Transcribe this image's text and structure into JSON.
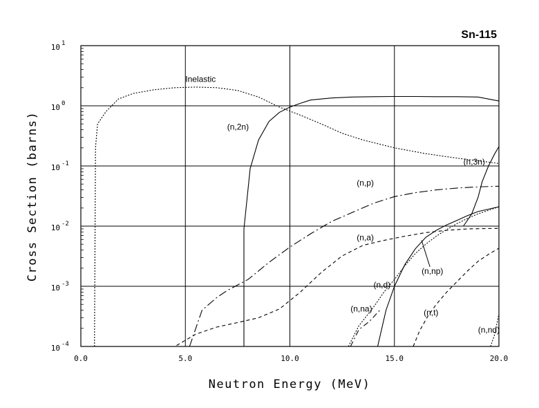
{
  "chart_data": {
    "type": "line",
    "title": "Sn-115",
    "xlabel": "Neutron Energy (MeV)",
    "ylabel": "Cross Section (barns)",
    "xlim": [
      0,
      20
    ],
    "ylim": [
      0.0001,
      10
    ],
    "yscale": "log",
    "grid": true,
    "x_ticks": [
      "0.0",
      "5.0",
      "10.0",
      "15.0",
      "20.0"
    ],
    "x_tick_values": [
      0,
      5,
      10,
      15,
      20
    ],
    "y_ticks": [
      {
        "base": "10",
        "exp": "-4",
        "value": 0.0001
      },
      {
        "base": "10",
        "exp": "-3",
        "value": 0.001
      },
      {
        "base": "10",
        "exp": "-2",
        "value": 0.01
      },
      {
        "base": "10",
        "exp": "-1",
        "value": 0.1
      },
      {
        "base": "10",
        "exp": "0",
        "value": 1
      },
      {
        "base": "10",
        "exp": "1",
        "value": 10
      }
    ],
    "series": [
      {
        "name": "Inelastic",
        "dash": "2,2",
        "label_at": [
          5.0,
          2.5
        ],
        "points": [
          [
            0.65,
            0.0001
          ],
          [
            0.7,
            0.2
          ],
          [
            0.8,
            0.5
          ],
          [
            1.2,
            0.8
          ],
          [
            1.8,
            1.3
          ],
          [
            2.5,
            1.6
          ],
          [
            3.5,
            1.85
          ],
          [
            4.5,
            2.0
          ],
          [
            5.5,
            2.05
          ],
          [
            6.5,
            2.0
          ],
          [
            7.5,
            1.8
          ],
          [
            8.5,
            1.4
          ],
          [
            9.5,
            0.95
          ],
          [
            10.5,
            0.7
          ],
          [
            11.5,
            0.5
          ],
          [
            12.5,
            0.35
          ],
          [
            13.5,
            0.27
          ],
          [
            15.0,
            0.2
          ],
          [
            16.5,
            0.16
          ],
          [
            18.0,
            0.135
          ],
          [
            20.0,
            0.11
          ]
        ]
      },
      {
        "name": "(n,2n)",
        "dash": "",
        "label_at": [
          7.0,
          0.4
        ],
        "points": [
          [
            7.8,
            0.0001
          ],
          [
            7.8,
            0.009
          ],
          [
            8.1,
            0.09
          ],
          [
            8.5,
            0.27
          ],
          [
            9.0,
            0.55
          ],
          [
            9.5,
            0.78
          ],
          [
            10.0,
            0.95
          ],
          [
            10.5,
            1.1
          ],
          [
            11.0,
            1.25
          ],
          [
            12.0,
            1.35
          ],
          [
            13.0,
            1.4
          ],
          [
            14.0,
            1.42
          ],
          [
            15.0,
            1.43
          ],
          [
            16.0,
            1.43
          ],
          [
            17.0,
            1.42
          ],
          [
            18.0,
            1.42
          ],
          [
            19.0,
            1.4
          ],
          [
            20.0,
            1.2
          ]
        ]
      },
      {
        "name": "(n,3n)",
        "dash": "",
        "label_at": [
          18.3,
          0.105
        ],
        "points": [
          [
            18.3,
            0.01
          ],
          [
            18.7,
            0.016
          ],
          [
            19.0,
            0.03
          ],
          [
            19.2,
            0.055
          ],
          [
            19.5,
            0.1
          ],
          [
            19.8,
            0.16
          ],
          [
            20.0,
            0.21
          ]
        ]
      },
      {
        "name": "(n,p)",
        "dash": "12,4,2,4",
        "label_at": [
          13.2,
          0.047
        ],
        "points": [
          [
            5.2,
            0.0001
          ],
          [
            5.8,
            0.0004
          ],
          [
            6.5,
            0.00065
          ],
          [
            7.0,
            0.00085
          ],
          [
            8.0,
            0.0013
          ],
          [
            9.0,
            0.0025
          ],
          [
            10.0,
            0.0045
          ],
          [
            11.0,
            0.0075
          ],
          [
            12.0,
            0.012
          ],
          [
            13.0,
            0.017
          ],
          [
            14.0,
            0.024
          ],
          [
            15.0,
            0.031
          ],
          [
            16.0,
            0.036
          ],
          [
            17.0,
            0.04
          ],
          [
            18.0,
            0.043
          ],
          [
            19.0,
            0.045
          ],
          [
            20.0,
            0.046
          ]
        ]
      },
      {
        "name": "(n,a)",
        "dash": "5,4",
        "label_at": [
          13.2,
          0.0058
        ],
        "points": [
          [
            4.0,
            0.0001
          ],
          [
            4.5,
            0.0001
          ],
          [
            5.5,
            0.00016
          ],
          [
            6.5,
            0.00021
          ],
          [
            7.5,
            0.00025
          ],
          [
            8.5,
            0.0003
          ],
          [
            9.5,
            0.00042
          ],
          [
            10.5,
            0.0008
          ],
          [
            11.5,
            0.0017
          ],
          [
            12.5,
            0.0032
          ],
          [
            13.5,
            0.0048
          ],
          [
            14.5,
            0.0058
          ],
          [
            15.5,
            0.0068
          ],
          [
            16.5,
            0.0078
          ],
          [
            17.5,
            0.0085
          ],
          [
            18.5,
            0.009
          ],
          [
            20.0,
            0.0092
          ]
        ]
      },
      {
        "name": "(n,d)",
        "dash": "2,2",
        "label_at": [
          14.0,
          0.00095
        ],
        "points": [
          [
            12.8,
            0.0001
          ],
          [
            13.3,
            0.00022
          ],
          [
            14.0,
            0.00045
          ],
          [
            14.5,
            0.0008
          ],
          [
            15.0,
            0.0013
          ],
          [
            15.5,
            0.0022
          ],
          [
            16.0,
            0.0035
          ],
          [
            16.5,
            0.005
          ],
          [
            17.0,
            0.0068
          ],
          [
            17.5,
            0.0088
          ],
          [
            18.0,
            0.011
          ],
          [
            18.5,
            0.0135
          ],
          [
            19.0,
            0.016
          ],
          [
            20.0,
            0.021
          ]
        ]
      },
      {
        "name": "(n,na)",
        "dash": "8,4,2,4",
        "label_at": [
          12.9,
          0.00038
        ],
        "points": [
          [
            12.9,
            0.0001
          ],
          [
            13.3,
            0.00019
          ],
          [
            13.8,
            0.00026
          ],
          [
            14.3,
            0.0004
          ]
        ]
      },
      {
        "name": "(n,np)",
        "dash": "",
        "label_at": [
          16.3,
          0.0016
        ],
        "points": [
          [
            14.2,
            0.0001
          ],
          [
            14.6,
            0.0004
          ],
          [
            15.0,
            0.001
          ],
          [
            15.5,
            0.0023
          ],
          [
            16.0,
            0.0042
          ],
          [
            16.5,
            0.0065
          ],
          [
            17.0,
            0.0085
          ],
          [
            17.5,
            0.0105
          ],
          [
            18.0,
            0.0125
          ],
          [
            18.5,
            0.015
          ],
          [
            19.0,
            0.0175
          ],
          [
            20.0,
            0.021
          ]
        ]
      },
      {
        "name": "(n,t)",
        "dash": "5,4",
        "label_at": [
          16.4,
          0.00033
        ],
        "points": [
          [
            15.9,
            0.0001
          ],
          [
            16.2,
            0.00018
          ],
          [
            16.6,
            0.00032
          ],
          [
            17.0,
            0.0005
          ],
          [
            17.5,
            0.0008
          ],
          [
            18.0,
            0.0012
          ],
          [
            18.5,
            0.0018
          ],
          [
            19.0,
            0.0026
          ],
          [
            19.5,
            0.0034
          ],
          [
            20.0,
            0.0043
          ]
        ]
      },
      {
        "name": "(n,nd)",
        "dash": "2,2",
        "label_at": [
          19.0,
          0.00017
        ],
        "points": [
          [
            19.6,
            0.0001
          ],
          [
            19.8,
            0.00016
          ],
          [
            20.0,
            0.00035
          ]
        ]
      }
    ]
  }
}
